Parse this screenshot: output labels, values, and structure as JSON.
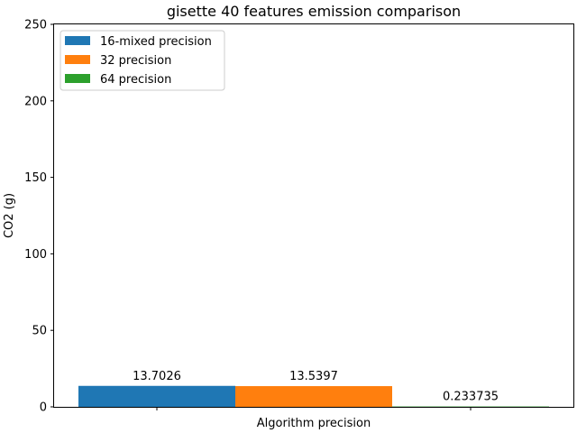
{
  "chart_data": {
    "type": "bar",
    "title": "gisette 40 features emission comparison",
    "xlabel": "Algorithm precision",
    "ylabel": "CO2 (g)",
    "ylim": [
      0,
      250
    ],
    "yticks": [
      0,
      50,
      100,
      150,
      200,
      250
    ],
    "grid": false,
    "legend_position": "top-left",
    "series": [
      {
        "name": "16-mixed precision",
        "value": 13.7026,
        "label": "13.7026",
        "color": "#1f77b4"
      },
      {
        "name": "32 precision",
        "value": 13.5397,
        "label": "13.5397",
        "color": "#ff7f0e"
      },
      {
        "name": "64 precision",
        "value": 0.233735,
        "label": "0.233735",
        "color": "#2ca02c"
      }
    ]
  }
}
